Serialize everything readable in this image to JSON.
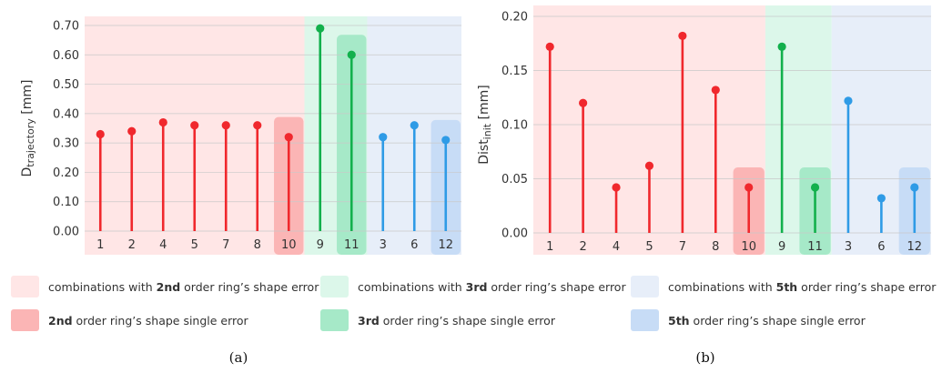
{
  "colors": {
    "red": "#f0282d",
    "green": "#12b04c",
    "blue": "#2f9be6",
    "bg2nd": "#ffe6e6",
    "bg3rd": "#dcf7ea",
    "bg5th": "#e7eef9",
    "hi2nd": "#fbb5b5",
    "hi3rd": "#a6e9c8",
    "hi5th": "#c7dcf6"
  },
  "legend": [
    {
      "pre": "combinations with ",
      "bold": "2nd",
      "post": " order ring’s shape error",
      "swatch": "bg2nd"
    },
    {
      "pre": "combinations with ",
      "bold": "3rd",
      "post": " order ring’s shape error",
      "swatch": "bg3rd"
    },
    {
      "pre": "combinations with ",
      "bold": "5th",
      "post": " order ring’s shape error",
      "swatch": "bg5th"
    },
    {
      "pre": "",
      "bold": "2nd",
      "post": " order ring’s shape single error",
      "swatch": "hi2nd"
    },
    {
      "pre": "",
      "bold": "3rd",
      "post": " order ring’s shape single error",
      "swatch": "hi3rd"
    },
    {
      "pre": "",
      "bold": "5th",
      "post": " order ring’s shape single error",
      "swatch": "hi5th"
    }
  ],
  "chart_data": [
    {
      "type": "lollipop",
      "panel": "(a)",
      "ylabel_main": "D",
      "ylabel_sub": "trajectory",
      "ylabel_unit": " [mm]",
      "categories": [
        "1",
        "2",
        "4",
        "5",
        "7",
        "8",
        "10",
        "9",
        "11",
        "3",
        "6",
        "12"
      ],
      "values": [
        0.33,
        0.34,
        0.37,
        0.36,
        0.36,
        0.36,
        0.32,
        0.69,
        0.6,
        0.32,
        0.36,
        0.31
      ],
      "groups": [
        "2nd",
        "2nd",
        "2nd",
        "2nd",
        "2nd",
        "2nd",
        "2nd",
        "3rd",
        "3rd",
        "5th",
        "5th",
        "5th"
      ],
      "single_error": [
        "10",
        "11",
        "12"
      ],
      "ylim": [
        0,
        0.7
      ],
      "yticks": [
        "0.00",
        "0.10",
        "0.20",
        "0.30",
        "0.40",
        "0.50",
        "0.60",
        "0.70"
      ],
      "grid": true
    },
    {
      "type": "lollipop",
      "panel": "(b)",
      "ylabel_main": "Dist",
      "ylabel_sub": "init",
      "ylabel_unit": " [mm]",
      "categories": [
        "1",
        "2",
        "4",
        "5",
        "7",
        "8",
        "10",
        "9",
        "11",
        "3",
        "6",
        "12"
      ],
      "values": [
        0.172,
        0.12,
        0.042,
        0.062,
        0.182,
        0.132,
        0.042,
        0.172,
        0.042,
        0.122,
        0.032,
        0.042
      ],
      "groups": [
        "2nd",
        "2nd",
        "2nd",
        "2nd",
        "2nd",
        "2nd",
        "2nd",
        "3rd",
        "3rd",
        "5th",
        "5th",
        "5th"
      ],
      "single_error": [
        "10",
        "11",
        "12"
      ],
      "ylim": [
        0,
        0.2
      ],
      "yticks": [
        "0.00",
        "0.05",
        "0.10",
        "0.15",
        "0.20"
      ],
      "grid": true
    }
  ]
}
